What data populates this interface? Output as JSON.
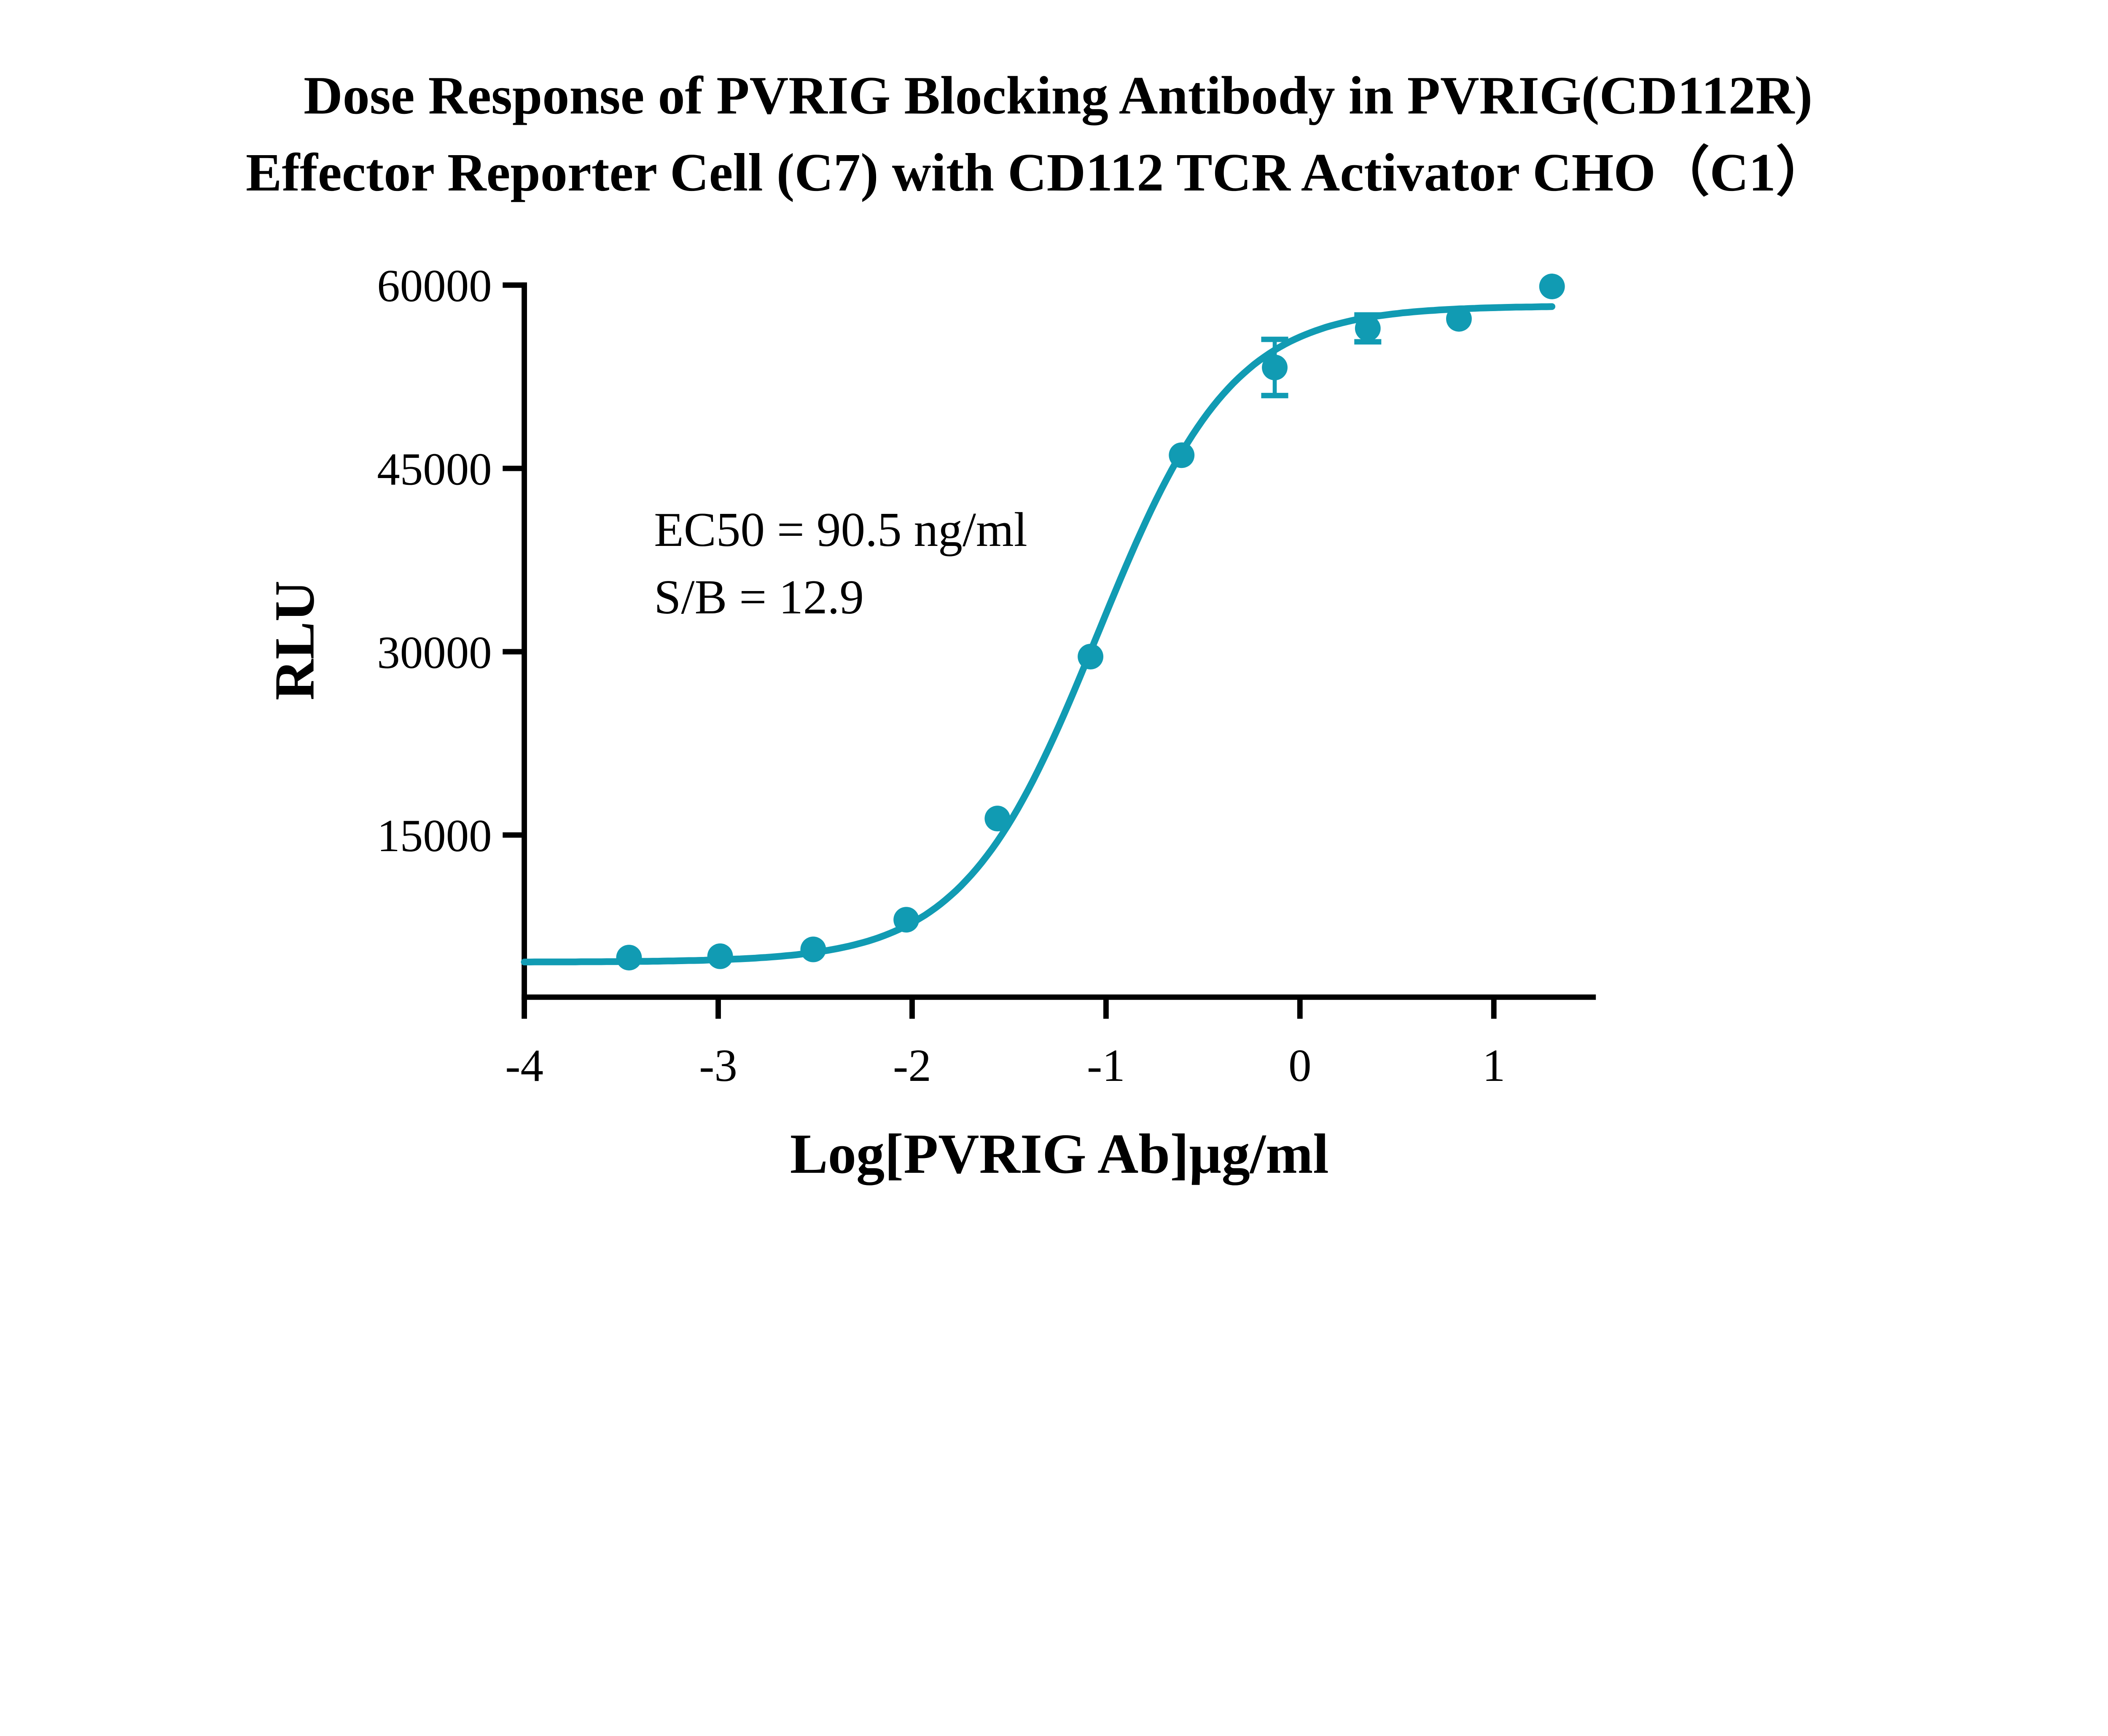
{
  "chart_data": {
    "type": "scatter",
    "title": [
      "Dose Response of PVRIG Blocking Antibody in PVRIG(CD112R)",
      "Effector Reporter Cell (C7) with CD112 TCR Activator CHO（C1）"
    ],
    "xlabel": "Log[PVRIG Ab]µg/ml",
    "ylabel": "RLU",
    "xlim": [
      -4,
      1.5
    ],
    "ylim": [
      1500,
      60000
    ],
    "xticks": [
      "-4",
      "-3",
      "-2",
      "-1",
      "0",
      "1"
    ],
    "xtick_values": [
      -4,
      -3,
      -2,
      -1,
      0,
      1
    ],
    "yticks": [
      "15000",
      "30000",
      "45000",
      "60000"
    ],
    "ytick_values": [
      15000,
      30000,
      45000,
      60000
    ],
    "grid": false,
    "color": "#119bb3",
    "points": {
      "x": [
        -3.46,
        -2.99,
        -2.51,
        -2.03,
        -1.56,
        -1.08,
        -0.61,
        -0.13,
        0.35,
        0.82,
        1.3
      ],
      "y": [
        4970,
        5080,
        5640,
        8070,
        16350,
        29600,
        46080,
        53260,
        56460,
        57240,
        59890
      ],
      "error": [
        0,
        0,
        0,
        0,
        0,
        0,
        0,
        2300,
        1100,
        0,
        0
      ]
    },
    "fit": {
      "model": "4PL",
      "bottom": 4600,
      "top": 58300,
      "logEC50": -1.043,
      "hill": 1.25,
      "x_range": [
        -4,
        1.3
      ]
    },
    "annotations": [
      "EC50 = 90.5 ng/ml",
      "S/B = 12.9"
    ]
  }
}
